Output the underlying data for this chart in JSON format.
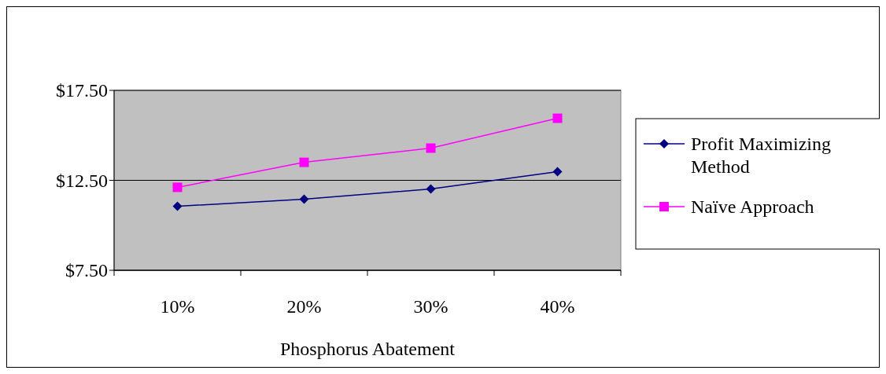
{
  "chart_data": {
    "type": "line",
    "xlabel": "Phosphorus Abatement",
    "categories": [
      "10%",
      "20%",
      "30%",
      "40%"
    ],
    "series": [
      {
        "name": "Profit Maximizing Method",
        "color": "#000080",
        "values": [
          11.06,
          11.45,
          12.02,
          12.98
        ],
        "marker": "diamond"
      },
      {
        "name": "Naïve Approach",
        "color": "#ff00ff",
        "values": [
          12.11,
          13.5,
          14.29,
          15.95
        ],
        "marker": "square"
      }
    ],
    "ylim": [
      7.5,
      17.5
    ],
    "yticks": [
      {
        "value": 7.5,
        "label": "$7.50"
      },
      {
        "value": 12.5,
        "label": "$12.50"
      },
      {
        "value": 17.5,
        "label": "$17.50"
      }
    ],
    "grid": "y",
    "legend": "right"
  }
}
